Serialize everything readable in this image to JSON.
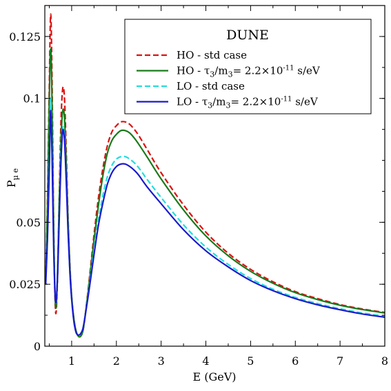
{
  "chart_data": {
    "type": "line",
    "title": "DUNE",
    "xlabel": "E (GeV)",
    "ylabel": "P",
    "ylabel_sub": "μ e",
    "xlim": [
      0.4,
      8
    ],
    "ylim": [
      0,
      0.1375
    ],
    "x_ticks": [
      1,
      2,
      3,
      4,
      5,
      6,
      7,
      8
    ],
    "x_tick_labels": [
      "1",
      "2",
      "3",
      "4",
      "5",
      "6",
      "7",
      "8"
    ],
    "y_ticks": [
      0,
      0.025,
      0.05,
      0.1,
      0.125
    ],
    "y_tick_labels": [
      "0",
      "0.025",
      "0.05",
      "0.1",
      "0.125"
    ],
    "grid": false,
    "legend_position": "top-right",
    "series": [
      {
        "name": "HO - std case",
        "legend_label": {
          "main": "HO - std case"
        },
        "color": "#dd1111",
        "dash": "dashed",
        "x": [
          0.42,
          0.46,
          0.5,
          0.53,
          0.56,
          0.6,
          0.64,
          0.68,
          0.72,
          0.76,
          0.8,
          0.84,
          0.88,
          0.92,
          0.96,
          1.0,
          1.05,
          1.1,
          1.15,
          1.2,
          1.25,
          1.3,
          1.4,
          1.5,
          1.6,
          1.7,
          1.8,
          1.9,
          2.0,
          2.1,
          2.2,
          2.3,
          2.4,
          2.5,
          2.7,
          3.0,
          3.5,
          4.0,
          4.5,
          5.0,
          5.5,
          6.0,
          6.5,
          7.0,
          7.5,
          8.0
        ],
        "y": [
          0.027,
          0.06,
          0.105,
          0.134,
          0.11,
          0.045,
          0.014,
          0.025,
          0.058,
          0.09,
          0.104,
          0.1,
          0.078,
          0.052,
          0.033,
          0.02,
          0.011,
          0.006,
          0.004,
          0.004,
          0.006,
          0.012,
          0.028,
          0.045,
          0.06,
          0.072,
          0.081,
          0.0865,
          0.089,
          0.0905,
          0.0905,
          0.0895,
          0.0875,
          0.085,
          0.079,
          0.07,
          0.057,
          0.046,
          0.0375,
          0.031,
          0.026,
          0.022,
          0.0192,
          0.0168,
          0.015,
          0.0136
        ]
      },
      {
        "name": "HO - τ3/m3= 2.2×10-11 s/eV",
        "legend_label": {
          "pre": "HO - τ",
          "s1": "3",
          "mid": "/m",
          "s2": "3",
          "post": "= 2.2×10",
          "sup": "-11",
          "end": " s/eV"
        },
        "color": "#1a7a1a",
        "dash": "solid",
        "x": [
          0.42,
          0.46,
          0.5,
          0.53,
          0.56,
          0.6,
          0.64,
          0.68,
          0.72,
          0.76,
          0.8,
          0.84,
          0.88,
          0.92,
          0.96,
          1.0,
          1.05,
          1.1,
          1.15,
          1.2,
          1.25,
          1.3,
          1.4,
          1.5,
          1.6,
          1.7,
          1.8,
          1.9,
          2.0,
          2.1,
          2.2,
          2.3,
          2.4,
          2.5,
          2.7,
          3.0,
          3.5,
          4.0,
          4.5,
          5.0,
          5.5,
          6.0,
          6.5,
          7.0,
          7.5,
          8.0
        ],
        "y": [
          0.027,
          0.058,
          0.1,
          0.12,
          0.1,
          0.045,
          0.016,
          0.027,
          0.058,
          0.083,
          0.095,
          0.092,
          0.073,
          0.05,
          0.032,
          0.02,
          0.011,
          0.006,
          0.004,
          0.004,
          0.006,
          0.012,
          0.027,
          0.043,
          0.057,
          0.069,
          0.078,
          0.083,
          0.0855,
          0.087,
          0.087,
          0.086,
          0.084,
          0.0815,
          0.076,
          0.0675,
          0.055,
          0.0445,
          0.0365,
          0.0302,
          0.0254,
          0.0216,
          0.0188,
          0.0165,
          0.0148,
          0.0134
        ]
      },
      {
        "name": "LO - std case",
        "legend_label": {
          "main": "LO - std case"
        },
        "color": "#22dddd",
        "dash": "dashed",
        "x": [
          0.42,
          0.46,
          0.5,
          0.53,
          0.56,
          0.6,
          0.64,
          0.68,
          0.72,
          0.76,
          0.8,
          0.84,
          0.88,
          0.92,
          0.96,
          1.0,
          1.05,
          1.1,
          1.15,
          1.2,
          1.25,
          1.3,
          1.4,
          1.5,
          1.6,
          1.7,
          1.8,
          1.9,
          2.0,
          2.1,
          2.2,
          2.3,
          2.4,
          2.5,
          2.7,
          3.0,
          3.5,
          4.0,
          4.5,
          5.0,
          5.5,
          6.0,
          6.5,
          7.0,
          7.5,
          8.0
        ],
        "y": [
          0.025,
          0.045,
          0.075,
          0.1,
          0.082,
          0.04,
          0.018,
          0.026,
          0.052,
          0.078,
          0.088,
          0.085,
          0.068,
          0.047,
          0.03,
          0.019,
          0.01,
          0.0055,
          0.0045,
          0.005,
          0.007,
          0.012,
          0.025,
          0.039,
          0.051,
          0.061,
          0.0685,
          0.073,
          0.0755,
          0.0765,
          0.0765,
          0.0755,
          0.074,
          0.072,
          0.067,
          0.06,
          0.049,
          0.04,
          0.033,
          0.0273,
          0.023,
          0.0197,
          0.0172,
          0.0151,
          0.0134,
          0.0121
        ]
      },
      {
        "name": "LO - τ3/m3= 2.2×10-11 s/eV",
        "legend_label": {
          "pre": "LO - τ",
          "s1": "3",
          "mid": "/m",
          "s2": "3",
          "post": "= 2.2×10",
          "sup": "-11",
          "end": " s/eV"
        },
        "color": "#1a1acc",
        "dash": "solid",
        "x": [
          0.42,
          0.46,
          0.5,
          0.53,
          0.56,
          0.6,
          0.64,
          0.68,
          0.72,
          0.76,
          0.8,
          0.84,
          0.88,
          0.92,
          0.96,
          1.0,
          1.05,
          1.1,
          1.15,
          1.2,
          1.25,
          1.3,
          1.4,
          1.5,
          1.6,
          1.7,
          1.8,
          1.9,
          2.0,
          2.1,
          2.2,
          2.3,
          2.4,
          2.5,
          2.7,
          3.0,
          3.5,
          4.0,
          4.5,
          5.0,
          5.5,
          6.0,
          6.5,
          7.0,
          7.5,
          8.0
        ],
        "y": [
          0.025,
          0.044,
          0.072,
          0.095,
          0.078,
          0.038,
          0.018,
          0.026,
          0.05,
          0.074,
          0.087,
          0.083,
          0.066,
          0.046,
          0.03,
          0.019,
          0.01,
          0.0055,
          0.0045,
          0.005,
          0.007,
          0.012,
          0.024,
          0.037,
          0.049,
          0.058,
          0.0655,
          0.07,
          0.0725,
          0.0735,
          0.0735,
          0.0725,
          0.071,
          0.069,
          0.064,
          0.0575,
          0.047,
          0.0385,
          0.032,
          0.0265,
          0.0224,
          0.0192,
          0.0167,
          0.0147,
          0.013,
          0.0117
        ]
      }
    ]
  }
}
